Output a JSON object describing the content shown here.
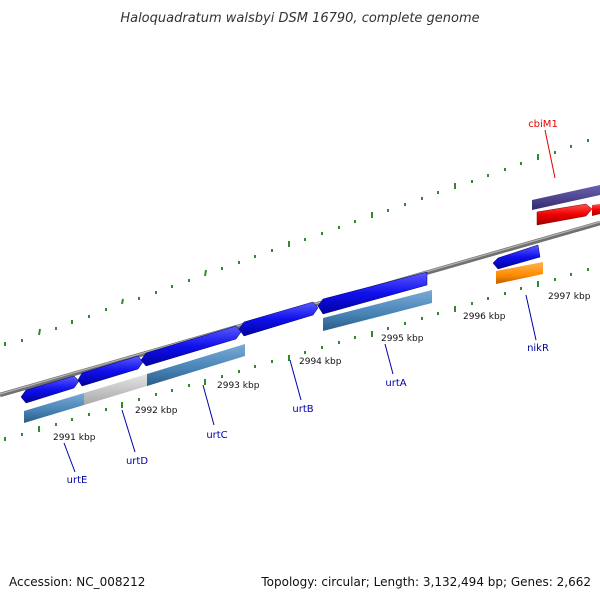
{
  "title": "Haloquadratum walsbyi DSM 16790, complete genome",
  "footer": {
    "accession": "Accession: NC_008212",
    "summary": "Topology: circular; Length: 3,132,494 bp; Genes: 2,662"
  },
  "scale_labels": [
    "2991 kbp",
    "2992 kbp",
    "2993 kbp",
    "2994 kbp",
    "2995 kbp",
    "2996 kbp",
    "2997 kbp"
  ],
  "genes": [
    {
      "name": "cbiM1",
      "color": "#e00000"
    },
    {
      "name": "nikR",
      "color": "#0000aa"
    },
    {
      "name": "urtA",
      "color": "#0000aa"
    },
    {
      "name": "urtB",
      "color": "#0000aa"
    },
    {
      "name": "urtC",
      "color": "#0000aa"
    },
    {
      "name": "urtD",
      "color": "#0000aa"
    },
    {
      "name": "urtE",
      "color": "#0000aa"
    }
  ],
  "colors": {
    "forward_cds": "#1010ee",
    "reverse_cds": "#4682b4",
    "pseudo": "#c8c8c8",
    "purple_track": "#483d8b",
    "red_track": "#ee0000",
    "orange_feature": "#ff8c00",
    "backbone": "#808080",
    "ticks": "#2e8b2e"
  }
}
